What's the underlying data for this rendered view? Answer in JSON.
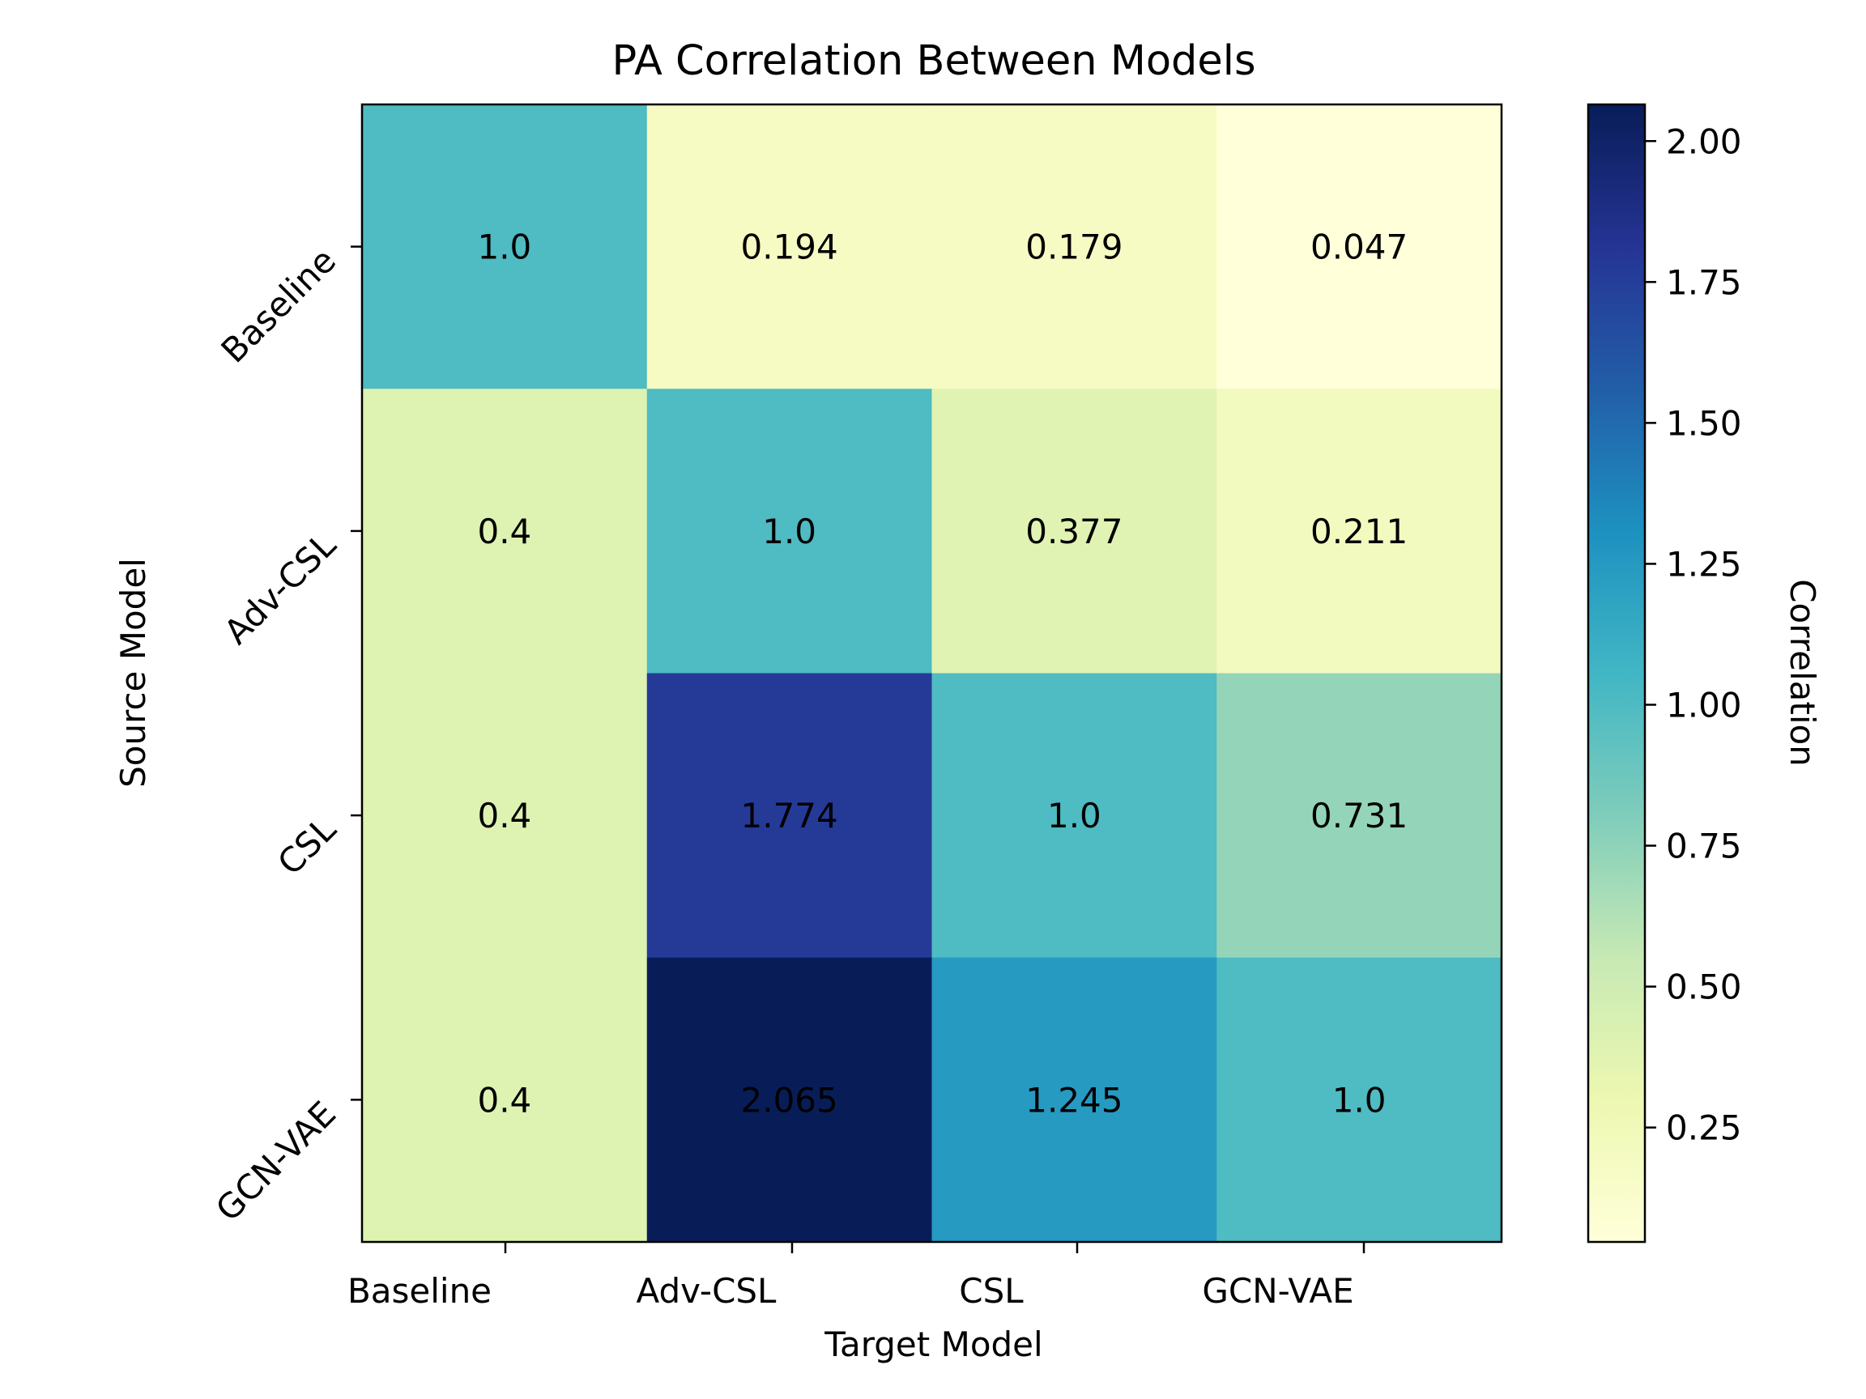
{
  "chart_data": {
    "type": "heatmap",
    "title": "PA Correlation Between Models",
    "xlabel": "Target Model",
    "ylabel": "Source Model",
    "x_categories": [
      "Baseline",
      "Adv-CSL",
      "CSL",
      "GCN-VAE"
    ],
    "y_categories": [
      "Baseline",
      "Adv-CSL",
      "CSL",
      "GCN-VAE"
    ],
    "values": [
      [
        1.0,
        0.194,
        0.179,
        0.047
      ],
      [
        0.4,
        1.0,
        0.377,
        0.211
      ],
      [
        0.4,
        1.774,
        1.0,
        0.731
      ],
      [
        0.4,
        2.065,
        1.245,
        1.0
      ]
    ],
    "cell_labels": [
      [
        "1.0",
        "0.194",
        "0.179",
        "0.047"
      ],
      [
        "0.4",
        "1.0",
        "0.377",
        "0.211"
      ],
      [
        "0.4",
        "1.774",
        "1.0",
        "0.731"
      ],
      [
        "0.4",
        "2.065",
        "1.245",
        "1.0"
      ]
    ],
    "colorbar": {
      "label": "Correlation",
      "colormap": "YlGnBu",
      "vmin": 0.047,
      "vmax": 2.065,
      "ticks": [
        0.25,
        0.5,
        0.75,
        1.0,
        1.25,
        1.5,
        1.75,
        2.0
      ],
      "tick_labels": [
        "0.25",
        "0.50",
        "0.75",
        "1.00",
        "1.25",
        "1.50",
        "1.75",
        "2.00"
      ]
    }
  }
}
